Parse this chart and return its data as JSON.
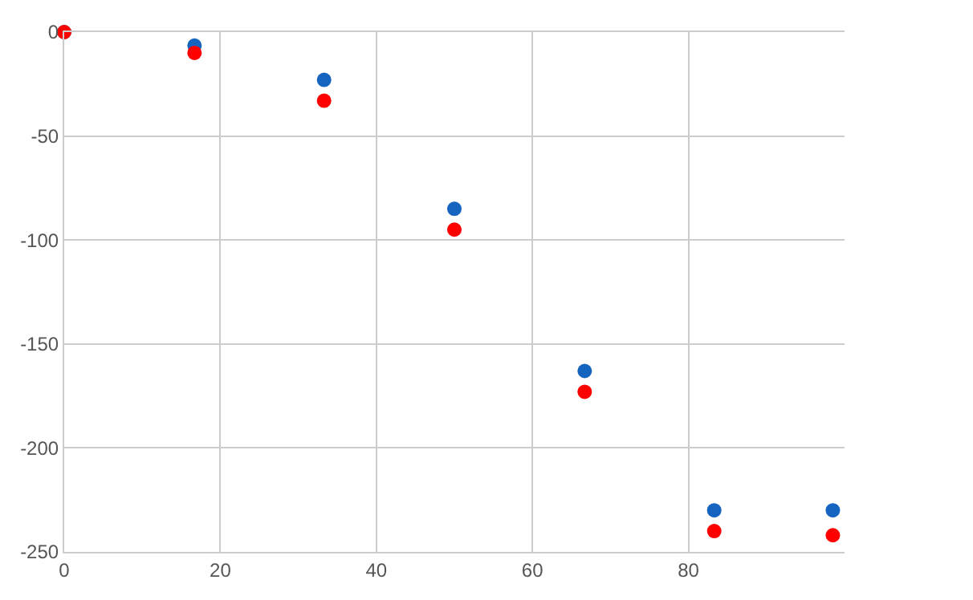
{
  "chart_data": {
    "type": "scatter",
    "x": [
      0,
      16.7,
      33.3,
      50,
      66.7,
      83.3,
      98.5
    ],
    "series": [
      {
        "color": "#1565c0",
        "values": [
          0,
          -6.5,
          -23,
          -85,
          -163,
          -230,
          -230
        ]
      },
      {
        "color": "#ff0000",
        "values": [
          0,
          -10,
          -33,
          -95,
          -173,
          -240,
          -242
        ]
      }
    ],
    "xlim": [
      0,
      100
    ],
    "xticks": [
      0,
      20,
      40,
      60,
      80
    ],
    "ylim": [
      -250,
      0
    ],
    "yticks": [
      -250,
      -200,
      -150,
      -100,
      -50,
      0
    ],
    "grid": true,
    "marker": "circle"
  }
}
